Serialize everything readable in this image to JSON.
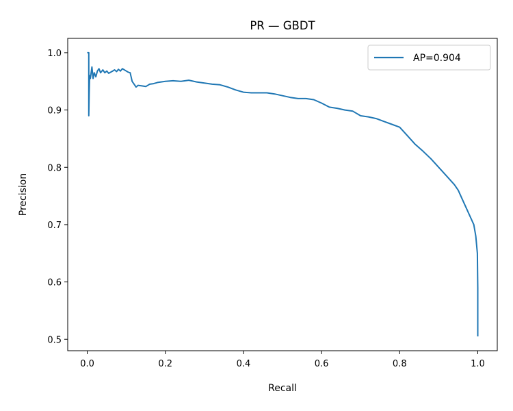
{
  "chart_data": {
    "type": "line",
    "title": "PR — GBDT",
    "xlabel": "Recall",
    "ylabel": "Precision",
    "xlim": [
      -0.05,
      1.05
    ],
    "ylim": [
      0.48,
      1.025
    ],
    "xticks": [
      {
        "value": 0.0,
        "label": "0.0"
      },
      {
        "value": 0.2,
        "label": "0.2"
      },
      {
        "value": 0.4,
        "label": "0.4"
      },
      {
        "value": 0.6,
        "label": "0.6"
      },
      {
        "value": 0.8,
        "label": "0.8"
      },
      {
        "value": 1.0,
        "label": "1.0"
      }
    ],
    "yticks": [
      {
        "value": 0.5,
        "label": "0.5"
      },
      {
        "value": 0.6,
        "label": "0.6"
      },
      {
        "value": 0.7,
        "label": "0.7"
      },
      {
        "value": 0.8,
        "label": "0.8"
      },
      {
        "value": 0.9,
        "label": "0.9"
      },
      {
        "value": 1.0,
        "label": "1.0"
      }
    ],
    "grid": false,
    "legend_position": "top-right",
    "series": [
      {
        "name": "AP=0.904",
        "color": "#1f77b4",
        "x": [
          0.0,
          0.004,
          0.004,
          0.005,
          0.006,
          0.008,
          0.012,
          0.015,
          0.018,
          0.022,
          0.026,
          0.03,
          0.034,
          0.04,
          0.045,
          0.05,
          0.055,
          0.06,
          0.065,
          0.07,
          0.075,
          0.08,
          0.085,
          0.09,
          0.095,
          0.1,
          0.105,
          0.11,
          0.115,
          0.12,
          0.125,
          0.13,
          0.14,
          0.15,
          0.16,
          0.17,
          0.18,
          0.2,
          0.22,
          0.24,
          0.26,
          0.28,
          0.3,
          0.32,
          0.34,
          0.36,
          0.38,
          0.4,
          0.42,
          0.44,
          0.46,
          0.48,
          0.5,
          0.52,
          0.54,
          0.56,
          0.58,
          0.6,
          0.62,
          0.64,
          0.66,
          0.68,
          0.7,
          0.72,
          0.74,
          0.76,
          0.78,
          0.8,
          0.82,
          0.84,
          0.86,
          0.88,
          0.9,
          0.92,
          0.94,
          0.95,
          0.96,
          0.97,
          0.98,
          0.99,
          0.995,
          0.999,
          1.0,
          1.0,
          1.0
        ],
        "y": [
          1.0,
          1.0,
          0.89,
          0.93,
          0.96,
          0.955,
          0.975,
          0.955,
          0.965,
          0.958,
          0.968,
          0.972,
          0.965,
          0.97,
          0.965,
          0.968,
          0.964,
          0.966,
          0.968,
          0.97,
          0.967,
          0.971,
          0.968,
          0.972,
          0.97,
          0.968,
          0.966,
          0.965,
          0.95,
          0.945,
          0.94,
          0.943,
          0.942,
          0.941,
          0.945,
          0.946,
          0.948,
          0.95,
          0.951,
          0.95,
          0.952,
          0.949,
          0.947,
          0.945,
          0.944,
          0.94,
          0.935,
          0.931,
          0.93,
          0.93,
          0.93,
          0.928,
          0.925,
          0.922,
          0.92,
          0.92,
          0.918,
          0.912,
          0.905,
          0.903,
          0.9,
          0.898,
          0.89,
          0.888,
          0.885,
          0.88,
          0.875,
          0.87,
          0.855,
          0.84,
          0.828,
          0.815,
          0.8,
          0.785,
          0.77,
          0.76,
          0.745,
          0.73,
          0.715,
          0.7,
          0.68,
          0.65,
          0.59,
          0.505,
          0.505
        ]
      }
    ]
  }
}
